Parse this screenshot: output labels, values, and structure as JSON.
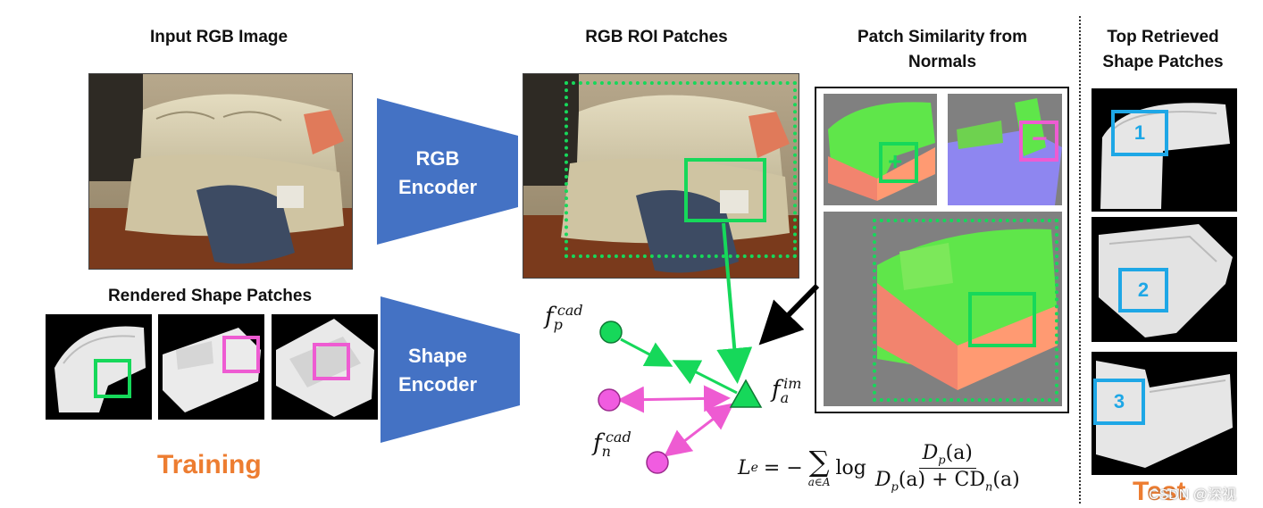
{
  "headers": {
    "input_rgb": "Input RGB Image",
    "rgb_roi": "RGB ROI Patches",
    "patch_sim_1": "Patch Similarity from",
    "patch_sim_2": "Normals",
    "top_retrieved_1": "Top Retrieved",
    "top_retrieved_2": "Shape Patches",
    "rendered_shape": "Rendered Shape Patches"
  },
  "encoders": {
    "rgb_1": "RGB",
    "rgb_2": "Encoder",
    "shape_1": "Shape",
    "shape_2": "Encoder"
  },
  "features": {
    "f_sym": "f",
    "pos_sub": "p",
    "neg_sub": "n",
    "cad_sup": "cad",
    "anchor_sub": "a",
    "im_sup": "im"
  },
  "sim_signs": {
    "plus": "+",
    "minus": "−"
  },
  "loss": {
    "lhs": "L",
    "lhs_sub": "e",
    "eq": "= −",
    "sum": "∑",
    "sum_sub": "a∈A",
    "log": "log",
    "num": "D",
    "num_sub": "p",
    "num_arg": "(a)",
    "den": "D",
    "den_sub": "p",
    "den_arg": "(a) + CD",
    "den_sub2": "n",
    "den_arg2": "(a)"
  },
  "labels": {
    "training": "Training",
    "test": "Test",
    "watermark": "CSDN @深视"
  },
  "retrieved_ranks": [
    "1",
    "2",
    "3"
  ],
  "colors": {
    "encoder_blue": "#4472c4",
    "green": "#16d85a",
    "magenta": "#ee5bd2",
    "cyan": "#1ea7e6",
    "orange": "#ed7d31",
    "gray_bg": "#808080"
  }
}
